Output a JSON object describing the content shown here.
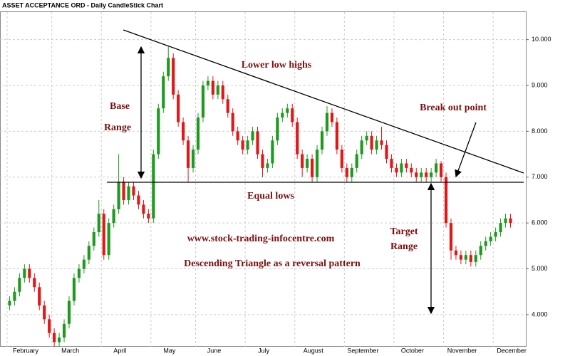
{
  "chart_data": {
    "type": "candlestick",
    "title": "ASSET ACCEPTANCE ORD - Daily CandleStick Chart",
    "up_color": "#1e9a1e",
    "down_color": "#e01818",
    "categories": [
      "February",
      null,
      null,
      null,
      null,
      null,
      null,
      null,
      null,
      "March",
      null,
      null,
      null,
      null,
      null,
      null,
      null,
      null,
      null,
      "April",
      null,
      null,
      null,
      null,
      null,
      null,
      null,
      null,
      null,
      "May",
      null,
      null,
      null,
      null,
      null,
      null,
      null,
      null,
      "June",
      null,
      null,
      null,
      null,
      null,
      null,
      null,
      null,
      null,
      "July",
      null,
      null,
      null,
      null,
      null,
      null,
      null,
      null,
      null,
      "August",
      null,
      null,
      null,
      null,
      null,
      null,
      null,
      null,
      null,
      "September",
      null,
      null,
      null,
      null,
      null,
      null,
      null,
      null,
      null,
      "October",
      null,
      null,
      null,
      null,
      null,
      null,
      null,
      null,
      null,
      "November",
      null,
      null,
      null,
      null,
      null,
      null,
      null,
      null,
      null,
      "December",
      null,
      null,
      null
    ],
    "open": [
      4.2,
      4.3,
      4.5,
      4.8,
      5.0,
      4.8,
      4.6,
      4.2,
      3.9,
      3.6,
      3.4,
      3.5,
      3.8,
      4.3,
      4.8,
      5.0,
      5.2,
      5.5,
      5.8,
      6.2,
      5.3,
      6.0,
      6.3,
      6.9,
      6.5,
      6.8,
      6.6,
      6.4,
      6.2,
      6.1,
      7.5,
      8.5,
      9.2,
      9.6,
      8.8,
      8.2,
      7.8,
      7.2,
      7.6,
      8.3,
      9.0,
      9.1,
      8.8,
      9.0,
      8.7,
      8.4,
      8.0,
      7.8,
      7.6,
      7.8,
      8.0,
      7.5,
      7.2,
      7.3,
      7.8,
      8.3,
      8.4,
      8.5,
      8.2,
      7.5,
      7.2,
      7.4,
      7.0,
      7.6,
      8.0,
      8.4,
      8.2,
      7.6,
      7.2,
      7.0,
      7.2,
      7.5,
      7.8,
      7.9,
      7.6,
      7.8,
      7.7,
      7.4,
      7.2,
      7.1,
      7.3,
      7.2,
      7.1,
      7.0,
      7.1,
      7.0,
      7.1,
      7.3,
      7.0,
      6.0,
      5.4,
      5.3,
      5.2,
      5.3,
      5.15,
      5.3,
      5.5,
      5.6,
      5.7,
      5.8,
      6.0,
      6.1
    ],
    "high": [
      4.4,
      4.6,
      4.9,
      5.1,
      5.1,
      4.9,
      4.7,
      4.3,
      4.0,
      3.7,
      3.6,
      3.9,
      4.4,
      4.9,
      5.1,
      5.3,
      5.6,
      5.9,
      6.5,
      6.3,
      6.1,
      6.4,
      7.5,
      7.0,
      6.9,
      6.9,
      6.7,
      6.5,
      6.3,
      7.6,
      8.6,
      9.3,
      9.85,
      9.7,
      8.9,
      8.3,
      7.9,
      7.7,
      8.4,
      9.1,
      9.2,
      9.2,
      9.1,
      9.1,
      8.8,
      8.5,
      8.1,
      7.9,
      7.9,
      8.1,
      8.1,
      7.6,
      7.4,
      7.9,
      8.4,
      8.5,
      8.6,
      8.6,
      8.3,
      7.6,
      7.5,
      7.5,
      7.7,
      8.1,
      8.55,
      8.5,
      8.3,
      7.7,
      7.3,
      7.3,
      7.6,
      7.9,
      8.0,
      8.0,
      7.9,
      8.1,
      7.8,
      7.5,
      7.3,
      7.4,
      7.4,
      7.3,
      7.2,
      7.2,
      7.2,
      7.2,
      7.4,
      7.35,
      7.1,
      6.1,
      5.5,
      5.4,
      5.4,
      5.4,
      5.4,
      5.6,
      5.7,
      5.8,
      5.9,
      6.1,
      6.2,
      6.2
    ],
    "low": [
      4.1,
      4.2,
      4.4,
      4.7,
      4.7,
      4.5,
      4.1,
      3.8,
      3.5,
      3.3,
      3.3,
      3.4,
      3.7,
      4.2,
      4.7,
      4.9,
      5.1,
      5.4,
      5.7,
      5.2,
      5.2,
      5.9,
      6.2,
      6.4,
      6.4,
      6.5,
      6.3,
      6.1,
      6.0,
      6.0,
      7.4,
      8.4,
      9.1,
      8.7,
      8.1,
      7.7,
      6.9,
      7.1,
      7.5,
      8.2,
      8.9,
      8.7,
      8.7,
      8.6,
      8.3,
      7.9,
      7.7,
      7.5,
      7.5,
      7.7,
      7.4,
      7.0,
      7.1,
      7.2,
      7.7,
      8.2,
      8.3,
      8.1,
      7.4,
      7.0,
      7.1,
      6.9,
      6.9,
      7.5,
      7.9,
      8.1,
      7.5,
      7.1,
      6.9,
      6.9,
      7.1,
      7.4,
      7.7,
      7.5,
      7.5,
      7.6,
      7.3,
      7.1,
      7.0,
      7.0,
      7.1,
      7.0,
      6.9,
      6.9,
      6.9,
      6.9,
      7.0,
      6.9,
      5.9,
      5.2,
      5.2,
      5.1,
      5.1,
      5.05,
      5.05,
      5.2,
      5.4,
      5.5,
      5.6,
      5.7,
      5.9,
      5.9
    ],
    "close": [
      4.3,
      4.5,
      4.8,
      5.0,
      4.8,
      4.6,
      4.2,
      3.9,
      3.6,
      3.4,
      3.5,
      3.8,
      4.3,
      4.8,
      5.0,
      5.2,
      5.5,
      5.8,
      6.2,
      5.3,
      6.0,
      6.3,
      6.9,
      6.5,
      6.8,
      6.6,
      6.4,
      6.2,
      6.1,
      7.5,
      8.5,
      9.2,
      9.6,
      8.8,
      8.2,
      7.8,
      7.2,
      7.6,
      8.3,
      9.0,
      9.1,
      8.8,
      9.0,
      8.7,
      8.4,
      8.0,
      7.8,
      7.6,
      7.8,
      8.0,
      7.5,
      7.2,
      7.3,
      7.8,
      8.3,
      8.4,
      8.5,
      8.2,
      7.5,
      7.2,
      7.4,
      7.0,
      7.6,
      8.0,
      8.4,
      8.2,
      7.6,
      7.2,
      7.0,
      7.2,
      7.5,
      7.8,
      7.9,
      7.6,
      7.8,
      7.7,
      7.4,
      7.2,
      7.1,
      7.3,
      7.2,
      7.1,
      7.0,
      7.1,
      7.0,
      7.1,
      7.3,
      7.0,
      6.0,
      5.4,
      5.3,
      5.2,
      5.3,
      5.15,
      5.3,
      5.5,
      5.6,
      5.7,
      5.8,
      6.0,
      6.1,
      6.0
    ],
    "ylim": [
      3.3,
      10.6
    ],
    "yticks": [
      {
        "value": 4,
        "label": "4.000"
      },
      {
        "value": 5,
        "label": "5.000"
      },
      {
        "value": 6,
        "label": "6.000"
      },
      {
        "value": 7,
        "label": "7.000"
      },
      {
        "value": 8,
        "label": "8.000"
      },
      {
        "value": 9,
        "label": "9.000"
      },
      {
        "value": 10,
        "label": "10.000"
      }
    ],
    "grid": true,
    "annotations": [
      "Lower low highs",
      "Base",
      "Range",
      "Break out point",
      "Equal lows",
      "www.stock-trading-infocentre.com",
      "Target",
      "Range",
      "Descending Triangle as a reversal pattern"
    ]
  }
}
